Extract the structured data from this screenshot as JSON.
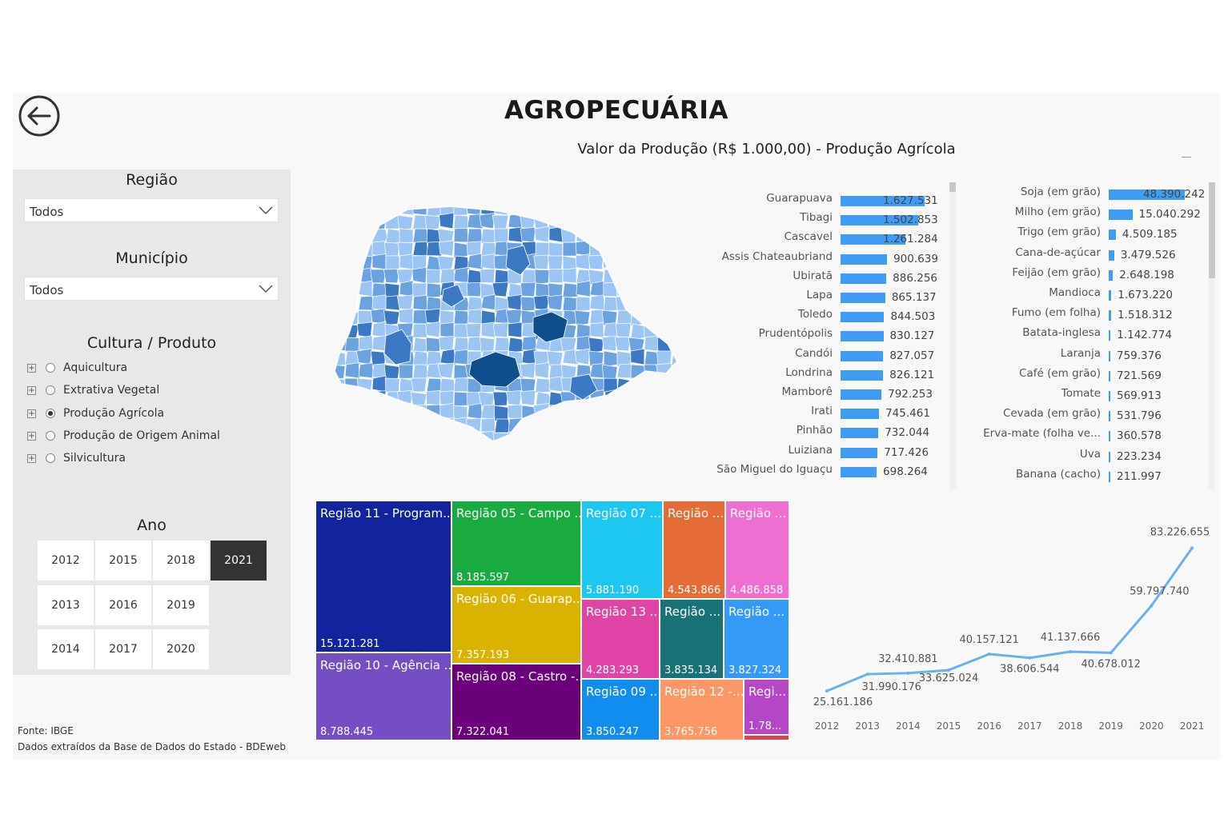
{
  "header": {
    "title": "AGROPECUÁRIA",
    "subtitle": "Valor da Produção (R$ 1.000,00) - Produção Agrícola"
  },
  "filters": {
    "regiao": {
      "label": "Região",
      "value": "Todos"
    },
    "municipio": {
      "label": "Município",
      "value": "Todos"
    },
    "cultura": {
      "label": "Cultura / Produto",
      "items": [
        {
          "label": "Aquicultura",
          "selected": false
        },
        {
          "label": "Extrativa Vegetal",
          "selected": false
        },
        {
          "label": "Produção Agrícola",
          "selected": true
        },
        {
          "label": "Produção de Origem Animal",
          "selected": false
        },
        {
          "label": "Silvicultura",
          "selected": false
        }
      ]
    },
    "ano": {
      "label": "Ano",
      "years": [
        "2012",
        "2015",
        "2018",
        "2021",
        "2013",
        "2016",
        "2019",
        "2014",
        "2017",
        "2020"
      ],
      "selected": "2021"
    }
  },
  "source": {
    "line1": "Fonte: IBGE",
    "line2": "Dados extraídos da Base de Dados do Estado - BDEweb"
  },
  "map": {
    "colors": {
      "light": "#9cc5f4",
      "mid": "#6da2e0",
      "dark": "#3d78c4",
      "darkest": "#0f4d8c"
    }
  },
  "chart_data": [
    {
      "type": "bar",
      "orientation": "horizontal",
      "categories": [
        "Guarapuava",
        "Tibagi",
        "Cascavel",
        "Assis Chateaubriand",
        "Ubiratã",
        "Lapa",
        "Toledo",
        "Prudentópolis",
        "Candói",
        "Londrina",
        "Mamborê",
        "Irati",
        "Pinhão",
        "Luiziana",
        "São Miguel do Iguaçu"
      ],
      "values": [
        1627531,
        1502853,
        1261284,
        900639,
        886256,
        865137,
        844503,
        830127,
        827057,
        826121,
        792253,
        745461,
        732044,
        717426,
        698264
      ],
      "labels": [
        "1.627.531",
        "1.502.853",
        "1.261.284",
        "900.639",
        "886.256",
        "865.137",
        "844.503",
        "830.127",
        "827.057",
        "826.121",
        "792.253",
        "745.461",
        "732.044",
        "717.426",
        "698.264"
      ],
      "color": "#3f9bf3"
    },
    {
      "type": "bar",
      "orientation": "horizontal",
      "categories": [
        "Soja (em grão)",
        "Milho (em grão)",
        "Trigo (em grão)",
        "Cana-de-açúcar",
        "Feijão (em grão)",
        "Mandioca",
        "Fumo (em folha)",
        "Batata-inglesa",
        "Laranja",
        "Café (em grão)",
        "Tomate",
        "Cevada (em grão)",
        "Erva-mate (folha ve...",
        "Uva",
        "Banana (cacho)"
      ],
      "values": [
        48390242,
        15040292,
        4509185,
        3479526,
        2648198,
        1673220,
        1518312,
        1142774,
        759376,
        721569,
        569913,
        531796,
        360578,
        223234,
        211997
      ],
      "labels": [
        "48.390.242",
        "15.040.292",
        "4.509.185",
        "3.479.526",
        "2.648.198",
        "1.673.220",
        "1.518.312",
        "1.142.774",
        "759.376",
        "721.569",
        "569.913",
        "531.796",
        "360.578",
        "223.234",
        "211.997"
      ],
      "color": "#3f9bf3"
    },
    {
      "type": "treemap",
      "items": [
        {
          "name": "Região 11 - Program...",
          "value": "15.121.281",
          "color": "#12239e"
        },
        {
          "name": "Região 05 - Campo ...",
          "value": "8.185.597",
          "color": "#1aab40"
        },
        {
          "name": "Região 07 ...",
          "value": "5.881.190",
          "color": "#1ec7f0"
        },
        {
          "name": "Região ...",
          "value": "4.543.866",
          "color": "#e66c37"
        },
        {
          "name": "Região ...",
          "value": "4.486.858",
          "color": "#ee6fd1"
        },
        {
          "name": "Região 06 - Guarap...",
          "value": "7.357.193",
          "color": "#d9b300"
        },
        {
          "name": "Região 13 ...",
          "value": "4.283.293",
          "color": "#e044a7"
        },
        {
          "name": "Região ...",
          "value": "3.835.134",
          "color": "#197278"
        },
        {
          "name": "Região ...",
          "value": "3.827.324",
          "color": "#3599f7"
        },
        {
          "name": "Região 10 - Agência ...",
          "value": "8.788.445",
          "color": "#744ec2"
        },
        {
          "name": "Região 08 - Castro -...",
          "value": "7.322.041",
          "color": "#6b007b"
        },
        {
          "name": "Região 09 ...",
          "value": "3.850.247",
          "color": "#118df0"
        },
        {
          "name": "Região 12 -...",
          "value": "3.765.756",
          "color": "#fe9666"
        },
        {
          "name": "Regi...",
          "value": "1.78...",
          "color": "#b347c5"
        },
        {
          "name": "",
          "value": "",
          "color": "#d64550"
        }
      ]
    },
    {
      "type": "line",
      "x": [
        "2012",
        "2013",
        "2014",
        "2015",
        "2016",
        "2017",
        "2018",
        "2019",
        "2020",
        "2021"
      ],
      "y": [
        25161186,
        31990176,
        32410881,
        33625024,
        40157121,
        38606544,
        41137666,
        40678012,
        59797740,
        83226655
      ],
      "labels": [
        "25.161.186",
        "31.990.176",
        "32.410.881",
        "33.625.024",
        "40.157.121",
        "38.606.544",
        "41.137.666",
        "40.678.012",
        "59.797.740",
        "83.226.655"
      ],
      "color": "#6ab0f0"
    }
  ]
}
